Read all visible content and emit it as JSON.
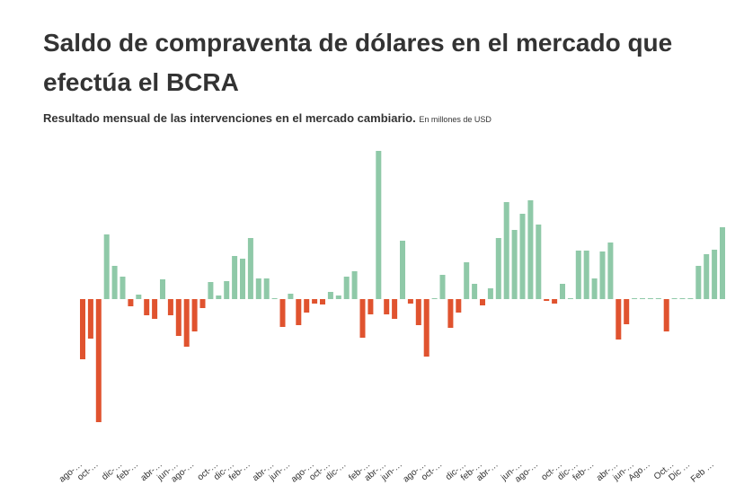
{
  "chart_data": {
    "type": "bar",
    "title": "Saldo de compraventa de dólares en el mercado que efectúa el BCRA",
    "subtitle": "Resultado  mensual de las intervenciones en el mercado cambiario.",
    "unit_note": "En millones de USD",
    "positive_color": "#8fc9a8",
    "negative_color": "#e0532f",
    "ylim": [
      -2800,
      3400
    ],
    "categories": [
      "ago-…",
      null,
      "oct-…",
      null,
      null,
      "dic-…",
      null,
      "feb-…",
      null,
      null,
      "abr-…",
      null,
      "jun-…",
      null,
      "ago-…",
      null,
      null,
      "oct-…",
      null,
      "dic-…",
      null,
      "feb-…",
      null,
      null,
      "abr-…",
      null,
      "jun-…",
      null,
      null,
      "ago-…",
      null,
      "oct-…",
      null,
      "dic-…",
      null,
      null,
      "feb-…",
      null,
      "abr-…",
      null,
      "jun-…",
      null,
      null,
      "ago-…",
      null,
      "oct-…",
      null,
      null,
      "dic-…",
      null,
      "feb-…",
      null,
      "abr-…",
      null,
      null,
      "jun-…",
      null,
      "ago-…",
      null,
      null,
      "oct-…",
      null,
      "dic-…",
      null,
      "feb-…",
      null,
      null,
      "abr-…",
      null,
      "jun-…",
      null,
      "Ago…",
      null,
      null,
      "Oct…",
      null,
      "Dic …",
      null,
      null,
      "Feb …",
      null
    ],
    "values": [
      -1340,
      -880,
      -2740,
      1440,
      740,
      500,
      -160,
      100,
      -360,
      -440,
      440,
      -360,
      -820,
      -1060,
      -720,
      -200,
      380,
      80,
      400,
      960,
      900,
      1360,
      460,
      460,
      20,
      -620,
      120,
      -580,
      -300,
      -100,
      -120,
      160,
      80,
      500,
      620,
      -860,
      -340,
      3300,
      -340,
      -440,
      1300,
      -100,
      -580,
      -1280,
      20,
      540,
      -640,
      -300,
      820,
      340,
      -140,
      240,
      1360,
      2160,
      1540,
      1900,
      2200,
      1660,
      -40,
      -100,
      340,
      20,
      1080,
      1080,
      460,
      1060,
      1260,
      -900,
      -560,
      20,
      20,
      20,
      20,
      -720,
      20,
      20,
      20,
      740,
      1000,
      1100,
      1600
    ]
  }
}
